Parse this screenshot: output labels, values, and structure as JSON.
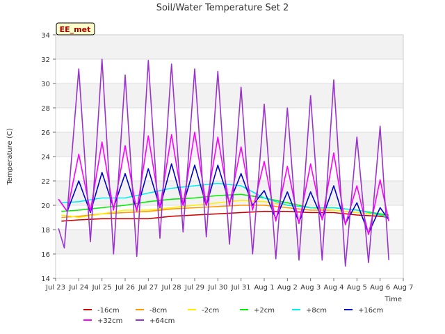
{
  "chart_data": {
    "type": "line",
    "title": "Soil/Water Temperature Set 2",
    "xlabel": "Time",
    "ylabel": "Temperature (C)",
    "site_label": "EE_met",
    "ylim": [
      14,
      34
    ],
    "yticks": [
      14,
      16,
      18,
      20,
      22,
      24,
      26,
      28,
      30,
      32,
      34
    ],
    "xlim": [
      "2024-07-23",
      "2024-08-07"
    ],
    "xticks": [
      {
        "date": "2024-07-23",
        "label": "Jul 23"
      },
      {
        "date": "2024-07-24",
        "label": "Jul 24"
      },
      {
        "date": "2024-07-25",
        "label": "Jul 25"
      },
      {
        "date": "2024-07-26",
        "label": "Jul 26"
      },
      {
        "date": "2024-07-27",
        "label": "Jul 27"
      },
      {
        "date": "2024-07-28",
        "label": "Jul 28"
      },
      {
        "date": "2024-07-29",
        "label": "Jul 29"
      },
      {
        "date": "2024-07-30",
        "label": "Jul 30"
      },
      {
        "date": "2024-07-31",
        "label": "Jul 31"
      },
      {
        "date": "2024-08-01",
        "label": "Aug 1"
      },
      {
        "date": "2024-08-02",
        "label": "Aug 2"
      },
      {
        "date": "2024-08-03",
        "label": "Aug 3"
      },
      {
        "date": "2024-08-04",
        "label": "Aug 4"
      },
      {
        "date": "2024-08-05",
        "label": "Aug 5"
      },
      {
        "date": "2024-08-06",
        "label": "Aug 6"
      },
      {
        "date": "2024-08-07",
        "label": "Aug 7"
      }
    ],
    "grid": true,
    "legend_position": "bottom",
    "series": [
      {
        "name": "-16cm",
        "color": "#cc0000",
        "points": [
          [
            "2024-07-23 06:00",
            18.7
          ],
          [
            "2024-07-24 00:00",
            18.8
          ],
          [
            "2024-07-25 00:00",
            18.9
          ],
          [
            "2024-07-26 00:00",
            18.9
          ],
          [
            "2024-07-27 00:00",
            18.9
          ],
          [
            "2024-07-28 00:00",
            19.1
          ],
          [
            "2024-07-29 00:00",
            19.2
          ],
          [
            "2024-07-30 00:00",
            19.3
          ],
          [
            "2024-07-31 00:00",
            19.4
          ],
          [
            "2024-08-01 00:00",
            19.5
          ],
          [
            "2024-08-02 00:00",
            19.5
          ],
          [
            "2024-08-03 00:00",
            19.4
          ],
          [
            "2024-08-04 00:00",
            19.4
          ],
          [
            "2024-08-05 00:00",
            19.2
          ],
          [
            "2024-08-06 00:00",
            19.1
          ],
          [
            "2024-08-06 09:00",
            19.0
          ]
        ]
      },
      {
        "name": "-8cm",
        "color": "#ff9900",
        "points": [
          [
            "2024-07-23 06:00",
            19.0
          ],
          [
            "2024-07-24 00:00",
            19.1
          ],
          [
            "2024-07-25 00:00",
            19.3
          ],
          [
            "2024-07-26 00:00",
            19.4
          ],
          [
            "2024-07-27 00:00",
            19.5
          ],
          [
            "2024-07-28 00:00",
            19.7
          ],
          [
            "2024-07-29 00:00",
            19.8
          ],
          [
            "2024-07-30 00:00",
            19.9
          ],
          [
            "2024-07-31 00:00",
            20.0
          ],
          [
            "2024-08-01 00:00",
            20.0
          ],
          [
            "2024-08-02 00:00",
            19.8
          ],
          [
            "2024-08-03 00:00",
            19.6
          ],
          [
            "2024-08-04 00:00",
            19.6
          ],
          [
            "2024-08-05 00:00",
            19.4
          ],
          [
            "2024-08-06 00:00",
            19.2
          ],
          [
            "2024-08-06 09:00",
            19.2
          ]
        ]
      },
      {
        "name": "-2cm",
        "color": "#ffee00",
        "points": [
          [
            "2024-07-23 06:00",
            19.2
          ],
          [
            "2024-07-24 00:00",
            19.0
          ],
          [
            "2024-07-25 00:00",
            19.3
          ],
          [
            "2024-07-26 00:00",
            19.6
          ],
          [
            "2024-07-27 00:00",
            19.6
          ],
          [
            "2024-07-28 00:00",
            19.8
          ],
          [
            "2024-07-29 00:00",
            20.0
          ],
          [
            "2024-07-30 00:00",
            20.2
          ],
          [
            "2024-07-31 00:00",
            20.4
          ],
          [
            "2024-08-01 00:00",
            20.3
          ],
          [
            "2024-08-02 00:00",
            20.0
          ],
          [
            "2024-08-03 00:00",
            19.8
          ],
          [
            "2024-08-04 00:00",
            19.6
          ],
          [
            "2024-08-05 00:00",
            19.4
          ],
          [
            "2024-08-06 00:00",
            19.2
          ],
          [
            "2024-08-06 09:00",
            19.0
          ]
        ]
      },
      {
        "name": "+2cm",
        "color": "#00ee00",
        "points": [
          [
            "2024-07-23 06:00",
            19.5
          ],
          [
            "2024-07-24 00:00",
            19.6
          ],
          [
            "2024-07-25 00:00",
            19.8
          ],
          [
            "2024-07-26 00:00",
            20.0
          ],
          [
            "2024-07-27 00:00",
            20.3
          ],
          [
            "2024-07-28 00:00",
            20.5
          ],
          [
            "2024-07-29 00:00",
            20.6
          ],
          [
            "2024-07-30 00:00",
            20.8
          ],
          [
            "2024-07-31 00:00",
            20.9
          ],
          [
            "2024-08-01 00:00",
            20.6
          ],
          [
            "2024-08-02 00:00",
            20.2
          ],
          [
            "2024-08-03 00:00",
            19.8
          ],
          [
            "2024-08-04 00:00",
            19.8
          ],
          [
            "2024-08-05 00:00",
            19.6
          ],
          [
            "2024-08-06 00:00",
            19.3
          ],
          [
            "2024-08-06 09:00",
            19.2
          ]
        ]
      },
      {
        "name": "+8cm",
        "color": "#00eeee",
        "points": [
          [
            "2024-07-23 06:00",
            20.2
          ],
          [
            "2024-07-24 00:00",
            20.3
          ],
          [
            "2024-07-25 00:00",
            20.6
          ],
          [
            "2024-07-26 00:00",
            20.6
          ],
          [
            "2024-07-27 00:00",
            21.0
          ],
          [
            "2024-07-28 00:00",
            21.4
          ],
          [
            "2024-07-29 00:00",
            21.6
          ],
          [
            "2024-07-30 00:00",
            21.8
          ],
          [
            "2024-07-31 00:00",
            21.6
          ],
          [
            "2024-08-01 00:00",
            20.6
          ],
          [
            "2024-08-02 00:00",
            20.0
          ],
          [
            "2024-08-03 00:00",
            19.8
          ],
          [
            "2024-08-04 00:00",
            19.8
          ],
          [
            "2024-08-05 00:00",
            19.6
          ],
          [
            "2024-08-06 00:00",
            19.2
          ],
          [
            "2024-08-06 09:00",
            19.0
          ]
        ]
      },
      {
        "name": "+16cm",
        "color": "#0000cc",
        "points": [
          [
            "2024-07-23 03:00",
            20.5
          ],
          [
            "2024-07-23 12:00",
            19.5
          ],
          [
            "2024-07-24 00:00",
            22.0
          ],
          [
            "2024-07-24 12:00",
            19.4
          ],
          [
            "2024-07-25 00:00",
            22.7
          ],
          [
            "2024-07-25 12:00",
            19.8
          ],
          [
            "2024-07-26 00:00",
            22.6
          ],
          [
            "2024-07-26 12:00",
            19.6
          ],
          [
            "2024-07-27 00:00",
            23.0
          ],
          [
            "2024-07-27 12:00",
            19.8
          ],
          [
            "2024-07-28 00:00",
            23.4
          ],
          [
            "2024-07-28 12:00",
            20.0
          ],
          [
            "2024-07-29 00:00",
            23.3
          ],
          [
            "2024-07-29 12:00",
            20.0
          ],
          [
            "2024-07-30 00:00",
            23.3
          ],
          [
            "2024-07-30 12:00",
            20.2
          ],
          [
            "2024-07-31 00:00",
            22.6
          ],
          [
            "2024-07-31 12:00",
            20.0
          ],
          [
            "2024-08-01 00:00",
            21.2
          ],
          [
            "2024-08-01 12:00",
            18.9
          ],
          [
            "2024-08-02 00:00",
            21.1
          ],
          [
            "2024-08-02 12:00",
            18.6
          ],
          [
            "2024-08-03 00:00",
            21.1
          ],
          [
            "2024-08-03 12:00",
            18.9
          ],
          [
            "2024-08-04 00:00",
            21.6
          ],
          [
            "2024-08-04 12:00",
            18.5
          ],
          [
            "2024-08-05 00:00",
            20.2
          ],
          [
            "2024-08-05 12:00",
            17.7
          ],
          [
            "2024-08-06 00:00",
            19.8
          ],
          [
            "2024-08-06 09:00",
            18.8
          ]
        ]
      },
      {
        "name": "+32cm",
        "color": "#ff00ff",
        "points": [
          [
            "2024-07-23 03:00",
            20.5
          ],
          [
            "2024-07-23 12:00",
            19.5
          ],
          [
            "2024-07-24 00:00",
            24.2
          ],
          [
            "2024-07-24 12:00",
            19.5
          ],
          [
            "2024-07-25 00:00",
            25.2
          ],
          [
            "2024-07-25 12:00",
            19.6
          ],
          [
            "2024-07-26 00:00",
            24.9
          ],
          [
            "2024-07-26 12:00",
            19.5
          ],
          [
            "2024-07-27 00:00",
            25.7
          ],
          [
            "2024-07-27 12:00",
            19.8
          ],
          [
            "2024-07-28 00:00",
            25.8
          ],
          [
            "2024-07-28 12:00",
            20.0
          ],
          [
            "2024-07-29 00:00",
            26.0
          ],
          [
            "2024-07-29 12:00",
            20.0
          ],
          [
            "2024-07-30 00:00",
            25.6
          ],
          [
            "2024-07-30 12:00",
            20.0
          ],
          [
            "2024-07-31 00:00",
            24.8
          ],
          [
            "2024-07-31 12:00",
            19.6
          ],
          [
            "2024-08-01 00:00",
            23.6
          ],
          [
            "2024-08-01 12:00",
            18.7
          ],
          [
            "2024-08-02 00:00",
            23.2
          ],
          [
            "2024-08-02 12:00",
            18.5
          ],
          [
            "2024-08-03 00:00",
            23.4
          ],
          [
            "2024-08-03 12:00",
            18.8
          ],
          [
            "2024-08-04 00:00",
            24.3
          ],
          [
            "2024-08-04 12:00",
            18.4
          ],
          [
            "2024-08-05 00:00",
            21.6
          ],
          [
            "2024-08-05 12:00",
            17.6
          ],
          [
            "2024-08-06 00:00",
            22.1
          ],
          [
            "2024-08-06 09:00",
            18.7
          ]
        ]
      },
      {
        "name": "+64cm",
        "color": "#9933cc",
        "points": [
          [
            "2024-07-23 03:00",
            18.1
          ],
          [
            "2024-07-23 09:00",
            16.5
          ],
          [
            "2024-07-24 00:00",
            31.2
          ],
          [
            "2024-07-24 12:00",
            17.0
          ],
          [
            "2024-07-25 00:00",
            32.0
          ],
          [
            "2024-07-25 12:00",
            16.0
          ],
          [
            "2024-07-26 00:00",
            30.7
          ],
          [
            "2024-07-26 12:00",
            15.8
          ],
          [
            "2024-07-27 00:00",
            31.9
          ],
          [
            "2024-07-27 12:00",
            17.3
          ],
          [
            "2024-07-28 00:00",
            31.6
          ],
          [
            "2024-07-28 12:00",
            17.8
          ],
          [
            "2024-07-29 00:00",
            31.2
          ],
          [
            "2024-07-29 12:00",
            17.4
          ],
          [
            "2024-07-30 00:00",
            31.0
          ],
          [
            "2024-07-30 12:00",
            16.8
          ],
          [
            "2024-07-31 00:00",
            29.7
          ],
          [
            "2024-07-31 12:00",
            16.0
          ],
          [
            "2024-08-01 00:00",
            28.3
          ],
          [
            "2024-08-01 12:00",
            15.6
          ],
          [
            "2024-08-02 00:00",
            28.0
          ],
          [
            "2024-08-02 12:00",
            15.5
          ],
          [
            "2024-08-03 00:00",
            29.0
          ],
          [
            "2024-08-03 12:00",
            15.5
          ],
          [
            "2024-08-04 00:00",
            30.3
          ],
          [
            "2024-08-04 12:00",
            15.0
          ],
          [
            "2024-08-05 00:00",
            25.6
          ],
          [
            "2024-08-05 12:00",
            15.3
          ],
          [
            "2024-08-06 00:00",
            26.5
          ],
          [
            "2024-08-06 09:00",
            15.5
          ]
        ]
      }
    ]
  }
}
